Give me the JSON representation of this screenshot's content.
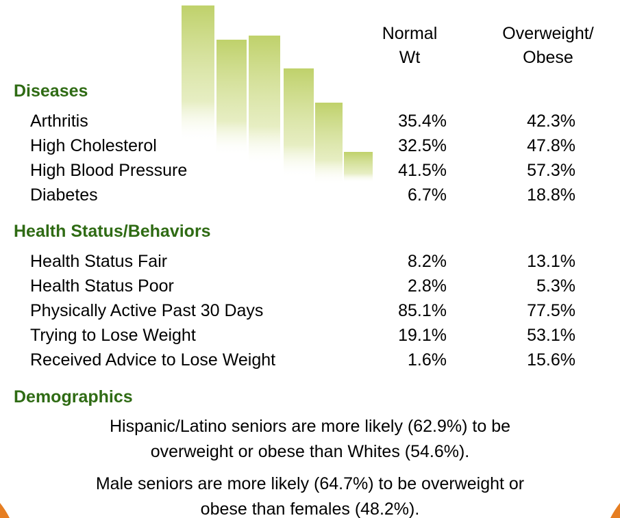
{
  "header": {
    "columns": [
      {
        "lines": [
          "Normal",
          "Wt"
        ]
      },
      {
        "lines": [
          "Overweight/",
          "Obese"
        ]
      }
    ]
  },
  "sections": [
    {
      "title": "Diseases",
      "rows": [
        [
          "Arthritis",
          "35.4%",
          "42.3%"
        ],
        [
          "High Cholesterol",
          "32.5%",
          "47.8%"
        ],
        [
          "High Blood Pressure",
          "41.5%",
          "57.3%"
        ],
        [
          "Diabetes",
          "6.7%",
          "18.8%"
        ]
      ]
    },
    {
      "title": "Health Status/Behaviors",
      "rows": [
        [
          "Health Status Fair",
          "8.2%",
          "13.1%"
        ],
        [
          "Health Status Poor",
          "2.8%",
          "5.3%"
        ],
        [
          "Physically Active Past 30 Days",
          "85.1%",
          "77.5%"
        ],
        [
          "Trying to Lose Weight",
          "19.1%",
          "53.1%"
        ],
        [
          "Received Advice to Lose Weight",
          "1.6%",
          "15.6%"
        ]
      ]
    }
  ],
  "demographics": {
    "title": "Demographics",
    "paragraphs": [
      {
        "lines": [
          "Hispanic/Latino seniors are more likely (62.9%) to be",
          "overweight or obese than Whites (54.6%)."
        ]
      },
      {
        "lines": [
          "Male seniors are more likely (64.7%) to be overweight or",
          "obese than females (48.2%)."
        ]
      }
    ]
  }
}
